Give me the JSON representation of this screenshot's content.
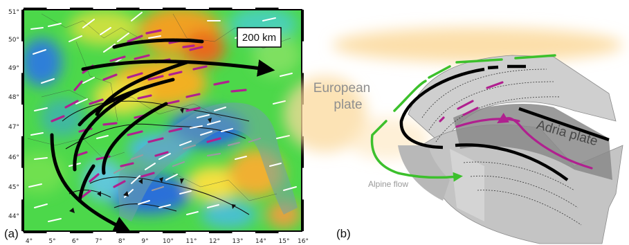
{
  "panel_a": {
    "label": "(a)",
    "lon_ticks": [
      "4°",
      "5°",
      "6°",
      "7°",
      "8°",
      "9°",
      "10°",
      "11°",
      "12°",
      "13°",
      "14°",
      "15°",
      "16°"
    ],
    "lat_ticks": [
      "51°",
      "50°",
      "49°",
      "48°",
      "47°",
      "46°",
      "45°",
      "44°"
    ],
    "scale_bar": "200 km"
  },
  "panel_b": {
    "label": "(b)",
    "european_plate": [
      "European",
      "plate"
    ],
    "adria_plate": "Adria plate",
    "alpine_flow": "Alpine flow"
  },
  "colors": {
    "flow_arrows": "#000000",
    "magenta_bars": "#b0208f",
    "white_bars": "#ffffff",
    "alpine_flow_green": "#3cc02c",
    "slab_gray": "#c8c8c8",
    "map_blue": "#2f7fd8",
    "map_green": "#48d848",
    "map_orange": "#f0a020"
  }
}
